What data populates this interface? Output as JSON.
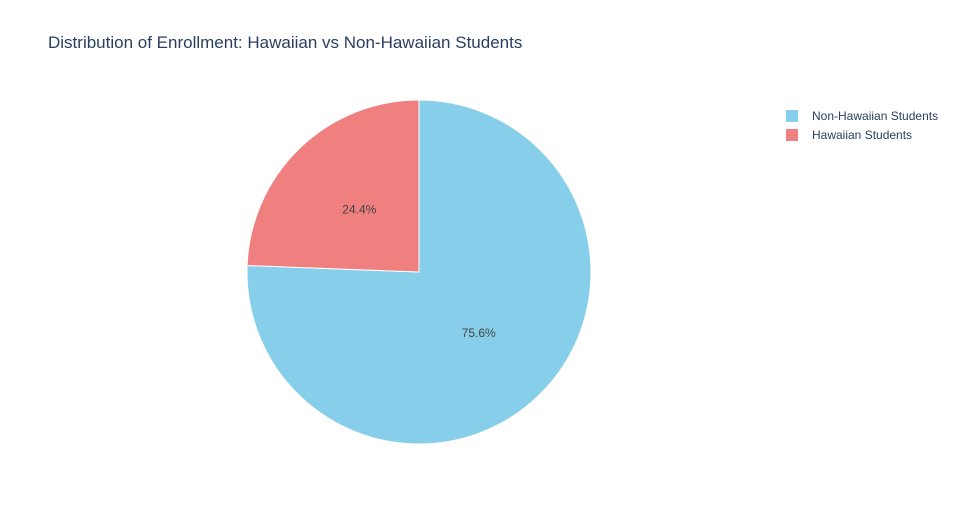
{
  "chart_data": {
    "type": "pie",
    "title": "Distribution of Enrollment: Hawaiian vs Non-Hawaiian Students",
    "labels": [
      "Non-Hawaiian Students",
      "Hawaiian Students"
    ],
    "values": [
      75.6,
      24.4
    ],
    "value_labels": [
      "75.6%",
      "24.4%"
    ],
    "colors": [
      "#87CEEB",
      "#F08080"
    ],
    "direction": "clockwise",
    "start": "top",
    "legend_position": "top-right"
  }
}
